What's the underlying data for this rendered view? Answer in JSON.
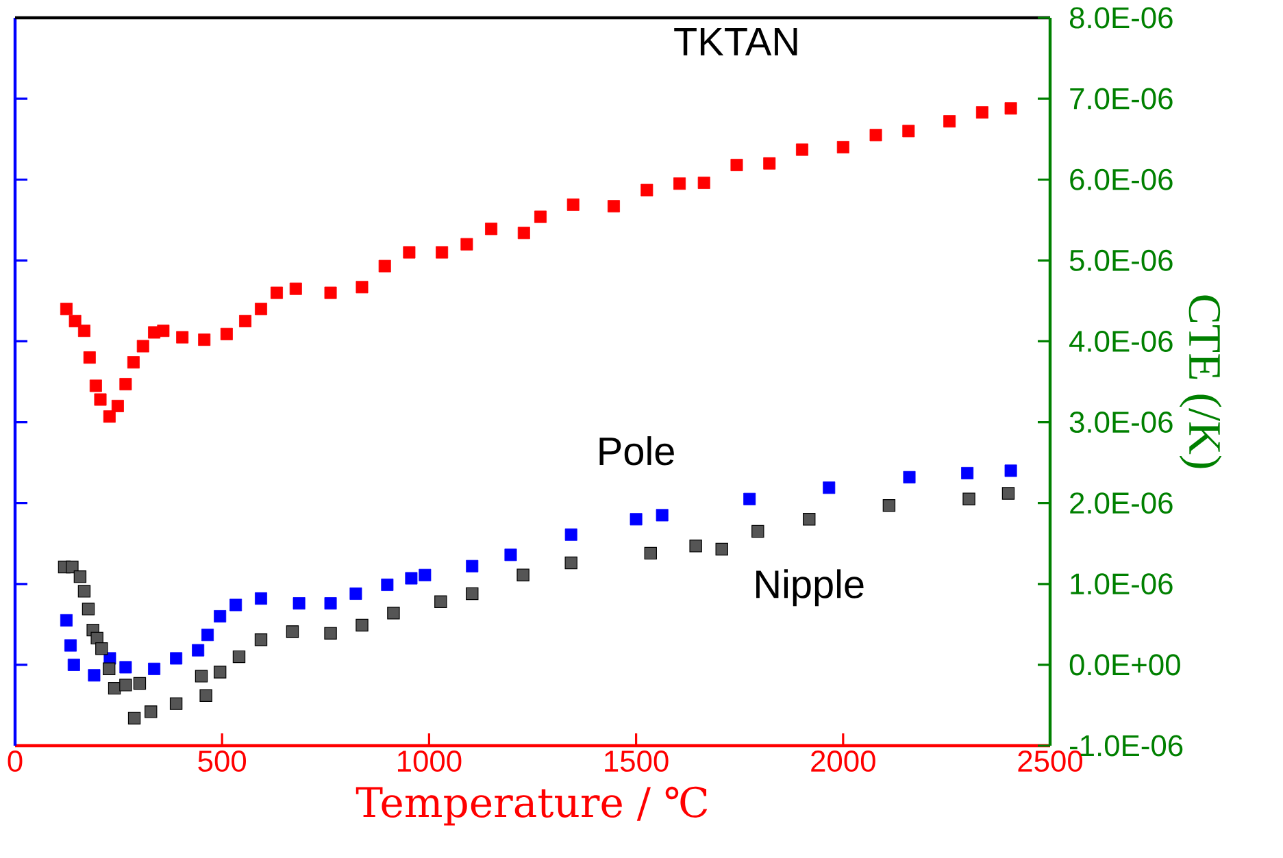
{
  "chart_data": {
    "type": "scatter",
    "xlabel": "Temperature / ℃",
    "ylabel": "CTE (/K)",
    "marker": "square",
    "xlim": [
      0,
      2500
    ],
    "xticks": [
      0,
      500,
      1000,
      1500,
      2000,
      2500
    ],
    "ylim": [
      -1e-06,
      8e-06
    ],
    "yticks": [
      {
        "value": -1e-06,
        "label": "-1.0E-06"
      },
      {
        "value": 0,
        "label": "0.0E+00"
      },
      {
        "value": 1e-06,
        "label": "1.0E-06"
      },
      {
        "value": 2e-06,
        "label": "2.0E-06"
      },
      {
        "value": 3e-06,
        "label": "3.0E-06"
      },
      {
        "value": 4e-06,
        "label": "4.0E-06"
      },
      {
        "value": 5e-06,
        "label": "5.0E-06"
      },
      {
        "value": 6e-06,
        "label": "6.0E-06"
      },
      {
        "value": 7e-06,
        "label": "7.0E-06"
      },
      {
        "value": 8e-06,
        "label": "8.0E-06"
      }
    ],
    "series": [
      {
        "name": "TKTAN",
        "color": "#ff0000",
        "x": [
          124,
          145,
          167,
          180,
          195,
          206,
          228,
          248,
          267,
          286,
          309,
          336,
          358,
          404,
          457,
          511,
          556,
          594,
          632,
          678,
          762,
          838,
          893,
          952,
          1031,
          1091,
          1150,
          1229,
          1269,
          1348,
          1446,
          1526,
          1605,
          1664,
          1743,
          1822,
          1901,
          2000,
          2079,
          2158,
          2257,
          2336,
          2405
        ],
        "values": [
          4.4e-06,
          4.25e-06,
          4.13e-06,
          3.8e-06,
          3.45e-06,
          3.28e-06,
          3.07e-06,
          3.2e-06,
          3.47e-06,
          3.74e-06,
          3.94e-06,
          4.11e-06,
          4.13e-06,
          4.05e-06,
          4.02e-06,
          4.09e-06,
          4.25e-06,
          4.4e-06,
          4.6e-06,
          4.65e-06,
          4.6e-06,
          4.67e-06,
          4.93e-06,
          5.1e-06,
          5.1e-06,
          5.2e-06,
          5.39e-06,
          5.34e-06,
          5.54e-06,
          5.69e-06,
          5.67e-06,
          5.87e-06,
          5.95e-06,
          5.96e-06,
          6.18e-06,
          6.2e-06,
          6.37e-06,
          6.4e-06,
          6.55e-06,
          6.6e-06,
          6.72e-06,
          6.83e-06,
          6.88e-06
        ]
      },
      {
        "name": "Pole",
        "color": "#0000ff",
        "x": [
          124,
          134,
          142,
          191,
          229,
          267,
          336,
          389,
          442,
          465,
          495,
          533,
          594,
          686,
          762,
          823,
          899,
          957,
          990,
          1104,
          1197,
          1343,
          1500,
          1563,
          1774,
          1966,
          2160,
          2300,
          2405
        ],
        "values": [
          5.5e-07,
          2.4e-07,
          0,
          -1.3e-07,
          8e-08,
          -3e-08,
          -5e-08,
          8e-08,
          1.8e-07,
          3.7e-07,
          6e-07,
          7.4e-07,
          8.2e-07,
          7.6e-07,
          7.6e-07,
          8.8e-07,
          9.9e-07,
          1.07e-06,
          1.11e-06,
          1.22e-06,
          1.36e-06,
          1.61e-06,
          1.8e-06,
          1.85e-06,
          2.05e-06,
          2.19e-06,
          2.32e-06,
          2.37e-06,
          2.4e-06
        ]
      },
      {
        "name": "Nipple",
        "color": "#555555",
        "x": [
          119,
          138,
          157,
          167,
          177,
          188,
          198,
          209,
          227,
          240,
          267,
          301,
          288,
          328,
          389,
          461,
          450,
          495,
          541,
          594,
          670,
          762,
          838,
          914,
          1028,
          1104,
          1227,
          1343,
          1535,
          1644,
          1707,
          1794,
          1918,
          2111,
          2304,
          2399
        ],
        "values": [
          1.21e-06,
          1.21e-06,
          1.09e-06,
          9.1e-07,
          6.9e-07,
          4.3e-07,
          3.3e-07,
          2e-07,
          -5e-08,
          -2.9e-07,
          -2.5e-07,
          -2.3e-07,
          -6.6e-07,
          -5.8e-07,
          -4.8e-07,
          -3.8e-07,
          -1.4e-07,
          -9e-08,
          1e-07,
          3.1e-07,
          4.1e-07,
          3.9e-07,
          4.9e-07,
          6.4e-07,
          7.8e-07,
          8.8e-07,
          1.11e-06,
          1.26e-06,
          1.38e-06,
          1.47e-06,
          1.43e-06,
          1.65e-06,
          1.8e-06,
          1.97e-06,
          2.05e-06,
          2.12e-06
        ]
      }
    ]
  }
}
